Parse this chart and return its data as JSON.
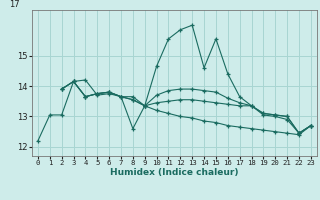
{
  "title": "",
  "xlabel": "Humidex (Indice chaleur)",
  "bg_color": "#ceecea",
  "grid_color": "#a8d5d2",
  "line_color": "#1a6b60",
  "xlim": [
    -0.5,
    23.5
  ],
  "ylim": [
    11.7,
    16.5
  ],
  "yticks": [
    12,
    13,
    14,
    15
  ],
  "xticks": [
    0,
    1,
    2,
    3,
    4,
    5,
    6,
    7,
    8,
    9,
    10,
    11,
    12,
    13,
    14,
    15,
    16,
    17,
    18,
    19,
    20,
    21,
    22,
    23
  ],
  "top_label": "17",
  "lines": [
    {
      "x": [
        0,
        1,
        2,
        3,
        4,
        5,
        6,
        7,
        8,
        9,
        10,
        11,
        12,
        13,
        14,
        15,
        16,
        17,
        18,
        19,
        20,
        21,
        22,
        23
      ],
      "y": [
        12.2,
        13.05,
        13.05,
        14.15,
        14.2,
        13.7,
        13.75,
        13.65,
        12.6,
        13.35,
        14.65,
        15.55,
        15.85,
        16.0,
        14.6,
        15.55,
        14.4,
        13.65,
        13.35,
        13.05,
        13.0,
        12.9,
        12.45,
        12.7
      ]
    },
    {
      "x": [
        2,
        3,
        4,
        5,
        6,
        7,
        8,
        9,
        10,
        11,
        12,
        13,
        14,
        15,
        16,
        17,
        18,
        19,
        20,
        21,
        22,
        23
      ],
      "y": [
        13.9,
        14.15,
        13.65,
        13.75,
        13.8,
        13.65,
        13.65,
        13.35,
        13.2,
        13.1,
        13.0,
        12.95,
        12.85,
        12.8,
        12.7,
        12.65,
        12.6,
        12.55,
        12.5,
        12.45,
        12.4,
        12.7
      ]
    },
    {
      "x": [
        2,
        3,
        4,
        5,
        6,
        7,
        8,
        9,
        10,
        11,
        12,
        13,
        14,
        15,
        16,
        17,
        18,
        19,
        20,
        21,
        22,
        23
      ],
      "y": [
        13.9,
        14.15,
        13.65,
        13.75,
        13.8,
        13.65,
        13.55,
        13.35,
        13.45,
        13.5,
        13.55,
        13.55,
        13.5,
        13.45,
        13.4,
        13.35,
        13.35,
        13.1,
        13.05,
        13.0,
        12.45,
        12.7
      ]
    },
    {
      "x": [
        2,
        3,
        4,
        5,
        6,
        7,
        8,
        9,
        10,
        11,
        12,
        13,
        14,
        15,
        16,
        17,
        18,
        19,
        20,
        21,
        22,
        23
      ],
      "y": [
        13.9,
        14.15,
        13.65,
        13.75,
        13.8,
        13.65,
        13.55,
        13.35,
        13.7,
        13.85,
        13.9,
        13.9,
        13.85,
        13.8,
        13.6,
        13.45,
        13.35,
        13.1,
        13.05,
        13.0,
        12.45,
        12.7
      ]
    }
  ]
}
